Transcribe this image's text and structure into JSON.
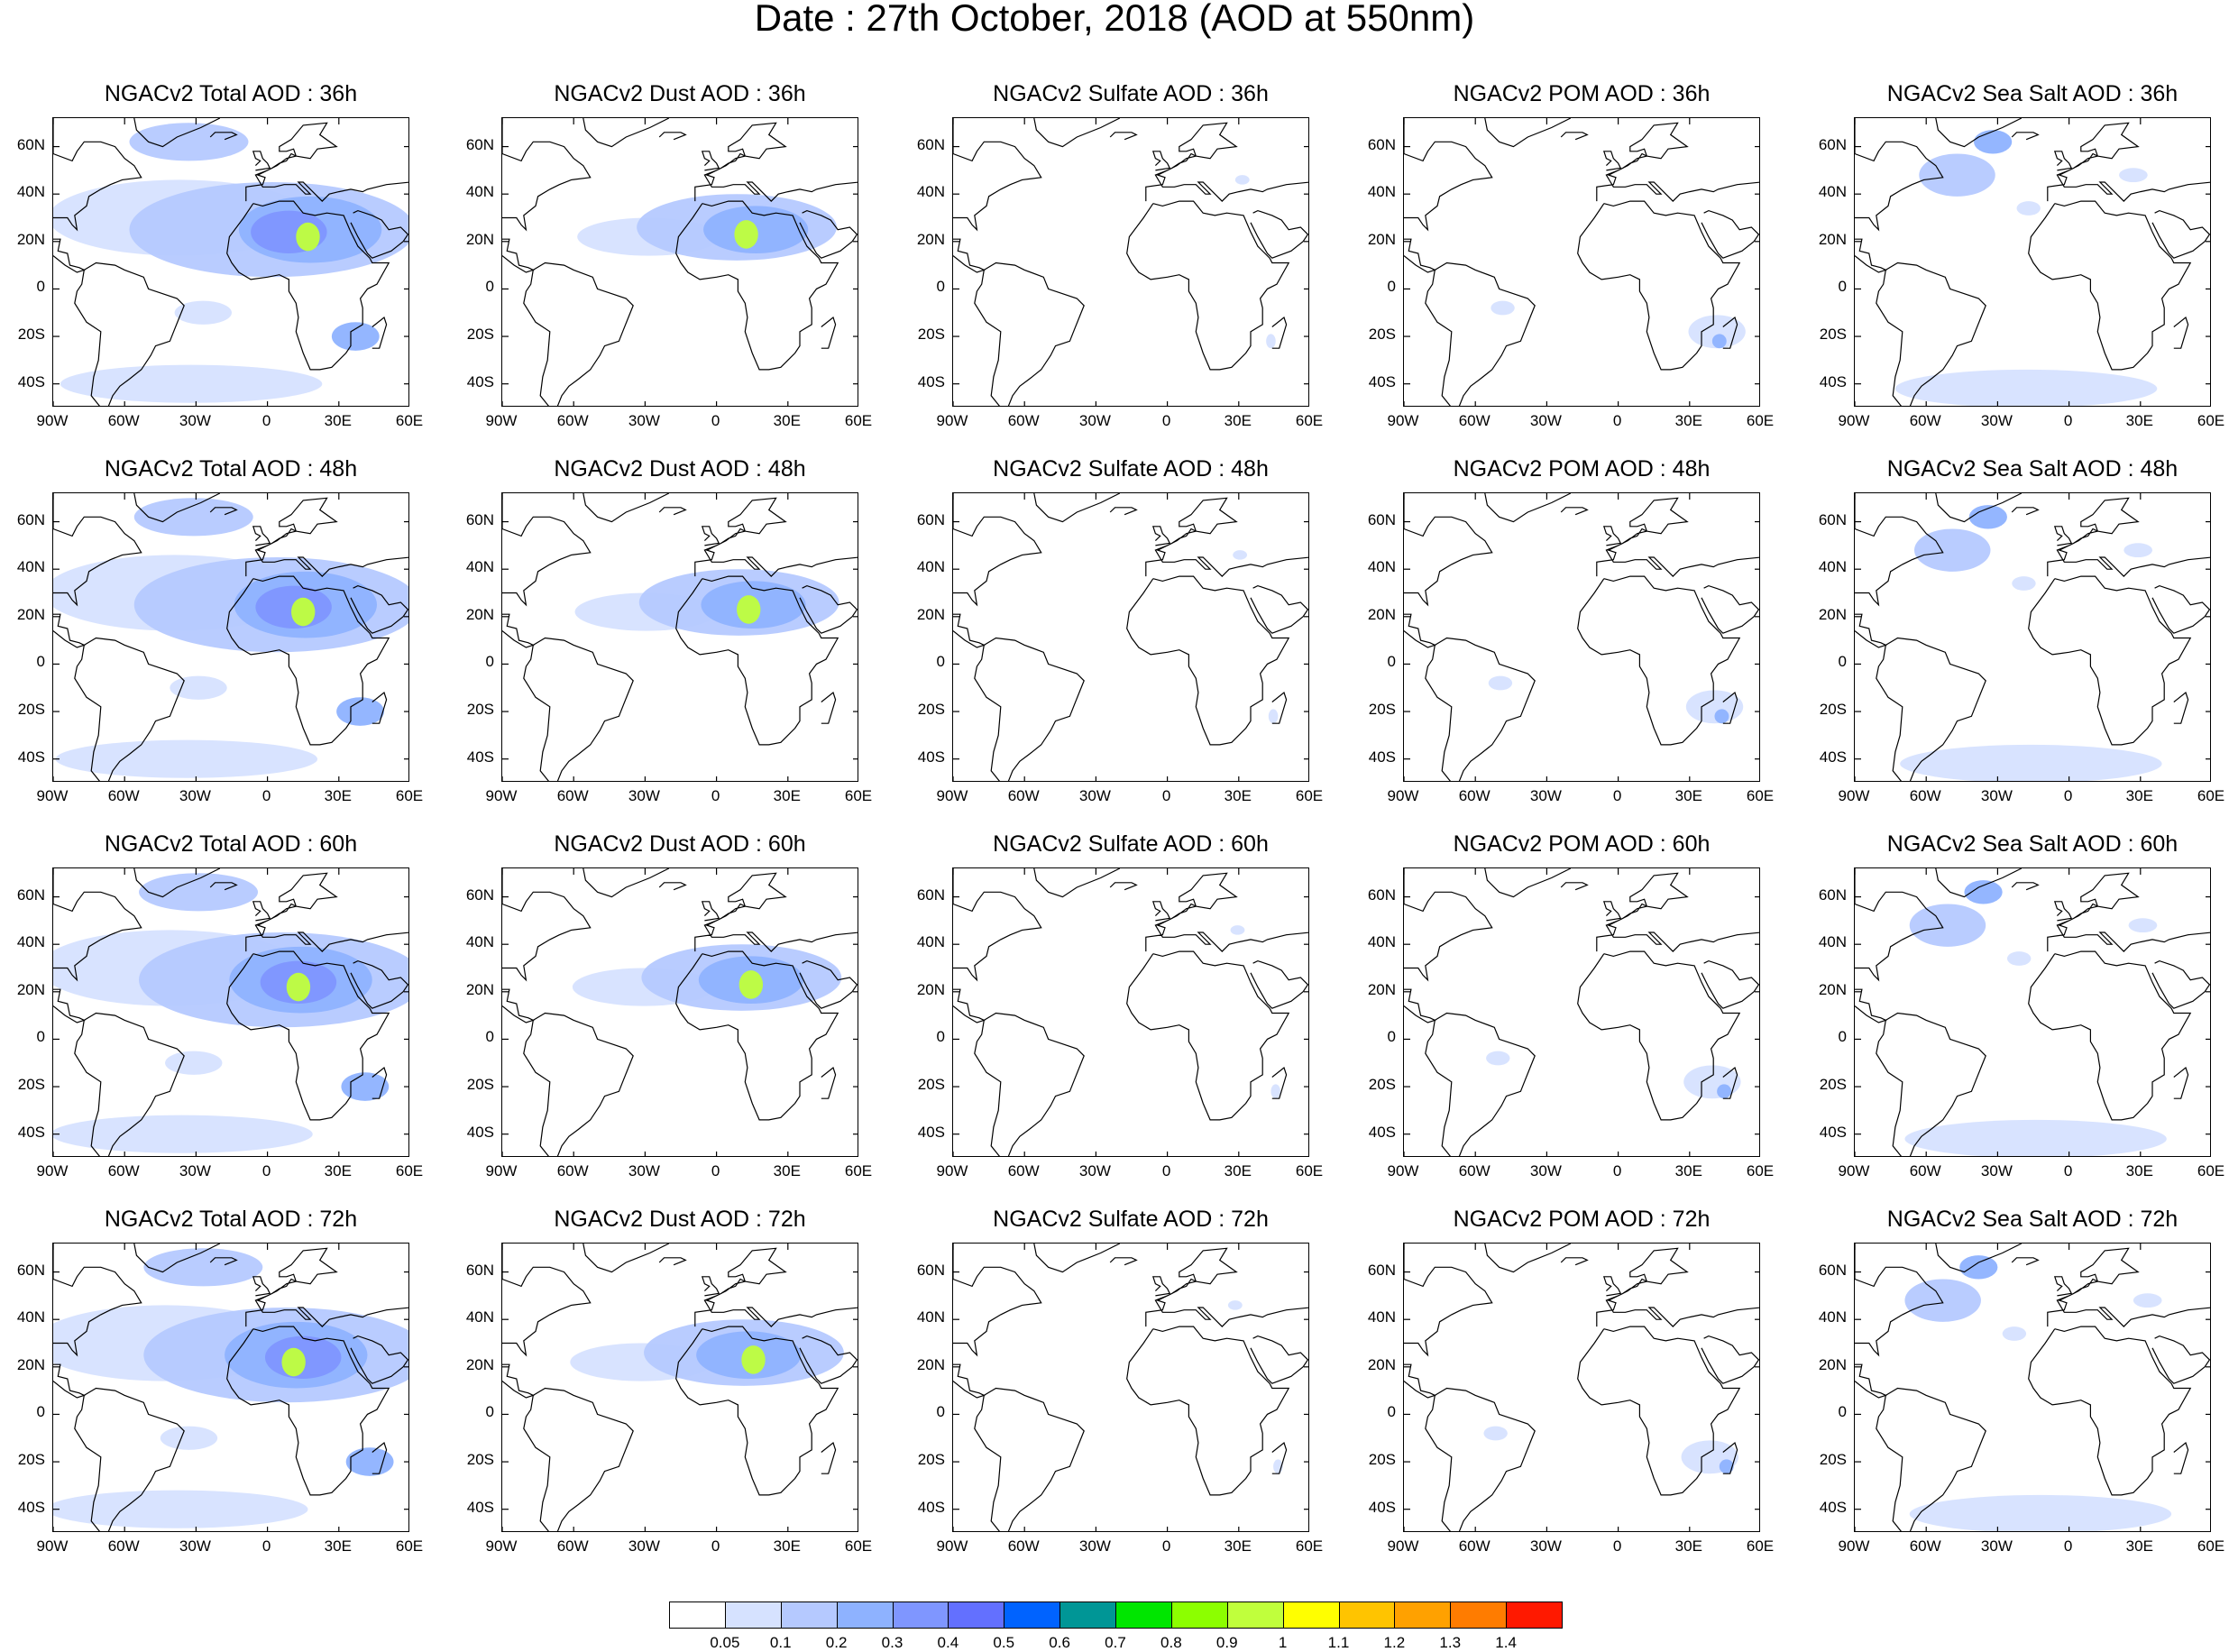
{
  "title": "Date : 27th October, 2018 (AOD at 550nm)",
  "panels": {
    "columns": [
      {
        "key": "total",
        "label": "Total"
      },
      {
        "key": "dust",
        "label": "Dust"
      },
      {
        "key": "sulfate",
        "label": "Sulfate"
      },
      {
        "key": "pom",
        "label": "POM"
      },
      {
        "key": "seasalt",
        "label": "Sea Salt"
      }
    ],
    "rows": [
      "36h",
      "48h",
      "60h",
      "72h"
    ],
    "titles": [
      [
        "NGACv2 Total AOD : 36h",
        "NGACv2 Dust AOD : 36h",
        "NGACv2 Sulfate AOD : 36h",
        "NGACv2 POM AOD : 36h",
        "NGACv2 Sea Salt AOD : 36h"
      ],
      [
        "NGACv2 Total AOD : 48h",
        "NGACv2 Dust AOD : 48h",
        "NGACv2 Sulfate AOD : 48h",
        "NGACv2 POM AOD : 48h",
        "NGACv2 Sea Salt AOD : 48h"
      ],
      [
        "NGACv2 Total AOD : 60h",
        "NGACv2 Dust AOD : 60h",
        "NGACv2 Sulfate AOD : 60h",
        "NGACv2 POM AOD : 60h",
        "NGACv2 Sea Salt AOD : 60h"
      ],
      [
        "NGACv2 Total AOD : 72h",
        "NGACv2 Dust AOD : 72h",
        "NGACv2 Sulfate AOD : 72h",
        "NGACv2 POM AOD : 72h",
        "NGACv2 Sea Salt  AOD : 72h"
      ]
    ]
  },
  "axes": {
    "lat_labels": [
      "60N",
      "40N",
      "20N",
      "0",
      "20S",
      "40S"
    ],
    "lat_values": [
      60,
      40,
      20,
      0,
      -20,
      -40
    ],
    "lon_labels": [
      "90W",
      "60W",
      "30W",
      "0",
      "30E",
      "60E"
    ],
    "lon_values": [
      -90,
      -60,
      -30,
      0,
      30,
      60
    ],
    "lat_range": [
      -50,
      72
    ],
    "lon_range": [
      -90,
      60
    ]
  },
  "colorbar": {
    "colors": [
      "#ffffff",
      "#d6e2ff",
      "#b5c9ff",
      "#8eb2ff",
      "#7f96ff",
      "#6370ff",
      "#0063ff",
      "#009696",
      "#00e600",
      "#8cff00",
      "#c0ff3c",
      "#ffff00",
      "#ffc400",
      "#ffa100",
      "#ff7c00",
      "#ff1900"
    ],
    "labels": [
      "0.05",
      "0.1",
      "0.2",
      "0.3",
      "0.4",
      "0.5",
      "0.6",
      "0.7",
      "0.8",
      "0.9",
      "1",
      "1.1",
      "1.2",
      "1.3",
      "1.4"
    ]
  },
  "colors": {
    "coastline": "#000000",
    "aod_light": "#d6e2ff",
    "aod_mid": "#b5c9ff",
    "aod_high": "#8eb2ff",
    "aod_peak": "#7f96ff",
    "dust_core": "#c0ff3c"
  }
}
